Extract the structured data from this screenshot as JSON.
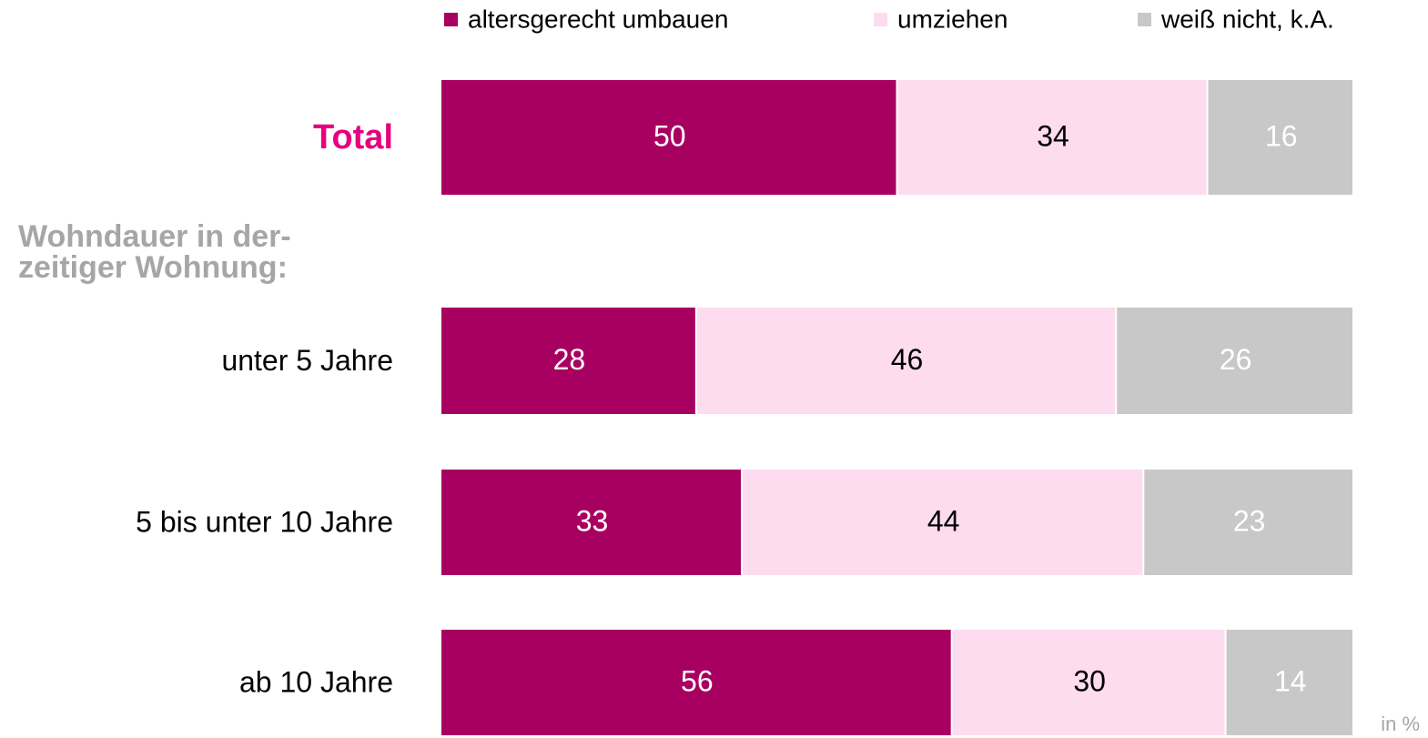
{
  "chart_data": {
    "type": "stacked_bar_horizontal",
    "categories": [
      "Total",
      "unter 5 Jahre",
      "5 bis unter 10 Jahre",
      "ab 10 Jahre"
    ],
    "group_label": [
      "Wohndauer in der-",
      "zeitiger Wohnung:"
    ],
    "series": [
      {
        "name": "altersgerecht umbauen",
        "color": "#a80060",
        "label_color": "#ffffff",
        "values": [
          50,
          28,
          33,
          56
        ]
      },
      {
        "name": "umziehen",
        "color": "#fddcef",
        "label_color": "#000000",
        "values": [
          34,
          46,
          44,
          30
        ]
      },
      {
        "name": "weiß nicht, k.A.",
        "color": "#c8c8c8",
        "label_color": "#ffffff",
        "values": [
          16,
          26,
          23,
          14
        ]
      }
    ],
    "xlim": [
      0,
      100
    ],
    "unit_note": "in %",
    "legend": "top"
  }
}
